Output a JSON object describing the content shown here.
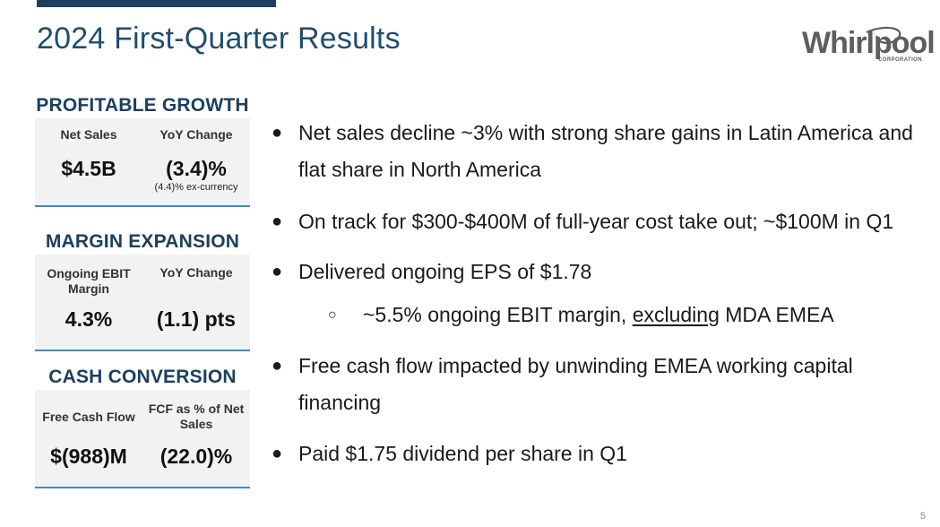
{
  "slide": {
    "title": "2024 First-Quarter Results",
    "page_number": "5",
    "colors": {
      "navy": "#1c3f60",
      "title_blue": "#1f4e6e",
      "accent_blue": "#3a8fc8",
      "box_gray": "#f2f2f2"
    }
  },
  "logo": {
    "name": "Whirlpool",
    "sub": "CORPORATION",
    "icon": "whirlpool-swoosh-logo"
  },
  "sections": [
    {
      "heading": "PROFITABLE GROWTH",
      "col1": {
        "label": "Net Sales",
        "value": "$4.5B"
      },
      "col2": {
        "label": "YoY Change",
        "value": "(3.4)%",
        "note": "(4.4)% ex-currency"
      }
    },
    {
      "heading": "MARGIN EXPANSION",
      "col1": {
        "label": "Ongoing EBIT Margin",
        "value": "4.3%"
      },
      "col2": {
        "label": "YoY Change",
        "value": "(1.1) pts"
      }
    },
    {
      "heading": "CASH CONVERSION",
      "col1": {
        "label": "Free Cash Flow",
        "value": "$(988)M"
      },
      "col2": {
        "label": "FCF as % of Net Sales",
        "value": "(22.0)%"
      }
    }
  ],
  "bullets": [
    {
      "text": "Net sales decline ~3% with strong share gains in Latin America and flat share in North America"
    },
    {
      "text": "On track for $300-$400M of full-year cost take out; ~$100M in Q1"
    },
    {
      "text": "Delivered ongoing EPS of $1.78"
    },
    {
      "pre": "~5.5% ongoing EBIT margin, ",
      "underlined": "excluding",
      "post": " MDA EMEA"
    },
    {
      "text": "Free cash flow impacted by unwinding EMEA working capital financing"
    },
    {
      "text": "Paid $1.75 dividend per share in Q1"
    }
  ],
  "bullet_glyphs": {
    "main": "●",
    "sub": "○"
  }
}
